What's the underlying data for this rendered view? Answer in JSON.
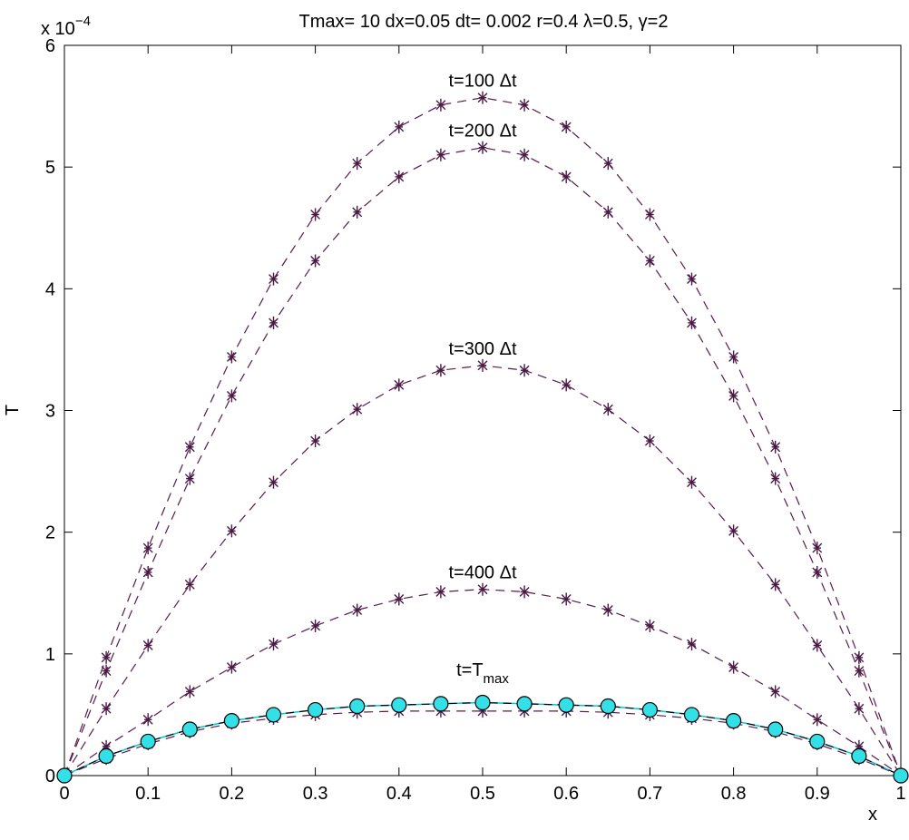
{
  "chart_data": {
    "type": "line",
    "title": "Tmax= 10 dx=0.05 dt= 0.002 r=0.4 λ=0.5, γ=2",
    "xlabel": "x",
    "ylabel": "T",
    "y_exponent_label": {
      "base": "x 10",
      "exp": "−4"
    },
    "xlim": [
      0,
      1
    ],
    "ylim": [
      0,
      6
    ],
    "x_ticks": [
      "0",
      "0.1",
      "0.2",
      "0.3",
      "0.4",
      "0.5",
      "0.6",
      "0.7",
      "0.8",
      "0.9",
      "1"
    ],
    "y_ticks": [
      "0",
      "1",
      "2",
      "3",
      "4",
      "5",
      "6"
    ],
    "grid": false,
    "colors": {
      "series_line": "#5a1a4f",
      "marker": "#4a1a45",
      "circle_fill": "#33e0e8",
      "circle_stroke": "#000000",
      "analytic_line": "#000000",
      "analytic_line_2": "#00c8d8"
    },
    "x": [
      0,
      0.05,
      0.1,
      0.15,
      0.2,
      0.25,
      0.3,
      0.35,
      0.4,
      0.45,
      0.5,
      0.55,
      0.6,
      0.65,
      0.7,
      0.75,
      0.8,
      0.85,
      0.9,
      0.95,
      1
    ],
    "series": [
      {
        "label": "t=100 Δt",
        "marker": "star",
        "values": [
          0,
          0.97,
          1.87,
          2.7,
          3.44,
          4.08,
          4.61,
          5.03,
          5.33,
          5.51,
          5.57,
          5.51,
          5.33,
          5.03,
          4.61,
          4.08,
          3.44,
          2.7,
          1.87,
          0.97,
          0
        ]
      },
      {
        "label": "t=200 Δt",
        "marker": "star",
        "values": [
          0,
          0.86,
          1.67,
          2.44,
          3.12,
          3.72,
          4.23,
          4.63,
          4.92,
          5.1,
          5.16,
          5.1,
          4.92,
          4.63,
          4.23,
          3.72,
          3.12,
          2.44,
          1.67,
          0.86,
          0
        ]
      },
      {
        "label": "t=300 Δt",
        "marker": "star",
        "values": [
          0,
          0.55,
          1.07,
          1.57,
          2.01,
          2.41,
          2.75,
          3.01,
          3.21,
          3.33,
          3.37,
          3.33,
          3.21,
          3.01,
          2.75,
          2.41,
          2.01,
          1.57,
          1.07,
          0.55,
          0
        ]
      },
      {
        "label": "t=400 Δt",
        "marker": "star",
        "values": [
          0,
          0.24,
          0.46,
          0.69,
          0.89,
          1.08,
          1.23,
          1.36,
          1.45,
          1.51,
          1.53,
          1.51,
          1.45,
          1.36,
          1.23,
          1.08,
          0.89,
          0.69,
          0.46,
          0.24,
          0
        ]
      },
      {
        "label": "t=T",
        "label_sub": "max",
        "marker": "star",
        "values": [
          0,
          0.14,
          0.26,
          0.36,
          0.43,
          0.47,
          0.5,
          0.52,
          0.53,
          0.53,
          0.53,
          0.53,
          0.53,
          0.52,
          0.5,
          0.47,
          0.43,
          0.36,
          0.26,
          0.14,
          0
        ]
      },
      {
        "marker": "circle",
        "values": [
          0,
          0.16,
          0.28,
          0.38,
          0.45,
          0.5,
          0.54,
          0.57,
          0.58,
          0.59,
          0.6,
          0.59,
          0.58,
          0.57,
          0.54,
          0.5,
          0.45,
          0.38,
          0.28,
          0.16,
          0
        ]
      }
    ]
  }
}
